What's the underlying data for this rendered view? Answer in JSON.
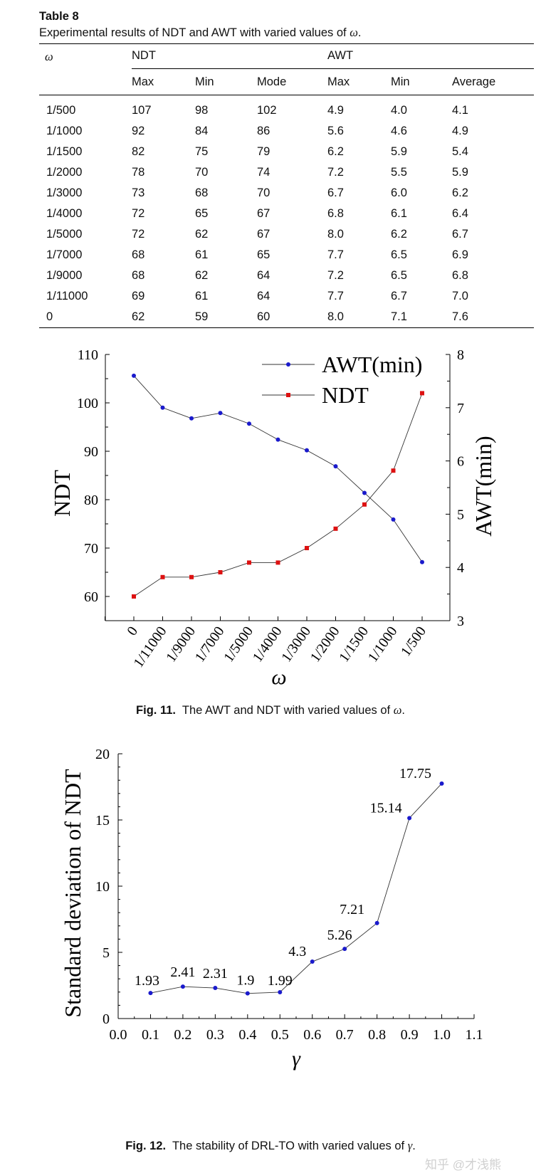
{
  "table": {
    "title": "Table 8",
    "caption_prefix": "Experimental results of NDT and AWT with varied values of ",
    "caption_symbol": "ω",
    "caption_suffix": ".",
    "header": {
      "omega": "ω",
      "ndt_group": "NDT",
      "awt_group": "AWT",
      "subcols": [
        "Max",
        "Min",
        "Mode",
        "Max",
        "Min",
        "Average"
      ]
    },
    "rows": [
      [
        "1/500",
        "107",
        "98",
        "102",
        "4.9",
        "4.0",
        "4.1"
      ],
      [
        "1/1000",
        "92",
        "84",
        "86",
        "5.6",
        "4.6",
        "4.9"
      ],
      [
        "1/1500",
        "82",
        "75",
        "79",
        "6.2",
        "5.9",
        "5.4"
      ],
      [
        "1/2000",
        "78",
        "70",
        "74",
        "7.2",
        "5.5",
        "5.9"
      ],
      [
        "1/3000",
        "73",
        "68",
        "70",
        "6.7",
        "6.0",
        "6.2"
      ],
      [
        "1/4000",
        "72",
        "65",
        "67",
        "6.8",
        "6.1",
        "6.4"
      ],
      [
        "1/5000",
        "72",
        "62",
        "67",
        "8.0",
        "6.2",
        "6.7"
      ],
      [
        "1/7000",
        "68",
        "61",
        "65",
        "7.7",
        "6.5",
        "6.9"
      ],
      [
        "1/9000",
        "68",
        "62",
        "64",
        "7.2",
        "6.5",
        "6.8"
      ],
      [
        "1/11000",
        "69",
        "61",
        "64",
        "7.7",
        "6.7",
        "7.0"
      ],
      [
        "0",
        "62",
        "59",
        "60",
        "8.0",
        "7.1",
        "7.6"
      ]
    ]
  },
  "fig11": {
    "caption_label": "Fig. 11.",
    "caption_text": "The AWT and NDT with varied values of ",
    "caption_symbol": "ω",
    "caption_suffix": "."
  },
  "fig12": {
    "caption_label": "Fig. 12.",
    "caption_text": "The stability of DRL-TO with varied values of ",
    "caption_symbol": "γ",
    "caption_suffix": "."
  },
  "watermark": "知乎 @才浅熊",
  "colors": {
    "awt_series": "#1a1acc",
    "ndt_series": "#dd1111",
    "line": "#333333"
  },
  "chart_data": [
    {
      "type": "line",
      "title": "",
      "xlabel": "ω",
      "ylabel": "NDT",
      "y2label": "AWT(min)",
      "categories": [
        "0",
        "1/11000",
        "1/9000",
        "1/7000",
        "1/5000",
        "1/4000",
        "1/3000",
        "1/2000",
        "1/1500",
        "1/1000",
        "1/500"
      ],
      "ylim": [
        55,
        110
      ],
      "y2lim": [
        3,
        8
      ],
      "yticks": [
        60,
        70,
        80,
        90,
        100,
        110
      ],
      "y2ticks": [
        3,
        4,
        5,
        6,
        7,
        8
      ],
      "legend_position": "top-right",
      "series": [
        {
          "name": "AWT(min)",
          "axis": "right",
          "marker": "circle",
          "values": [
            7.6,
            7.0,
            6.8,
            6.9,
            6.7,
            6.4,
            6.2,
            5.9,
            5.4,
            4.9,
            4.1
          ]
        },
        {
          "name": "NDT",
          "axis": "left",
          "marker": "square",
          "values": [
            60,
            64,
            64,
            65,
            67,
            67,
            70,
            74,
            79,
            86,
            102
          ]
        }
      ]
    },
    {
      "type": "line",
      "title": "",
      "xlabel": "γ",
      "ylabel": "Standard deviation of NDT",
      "x": [
        0.1,
        0.2,
        0.3,
        0.4,
        0.5,
        0.6,
        0.7,
        0.8,
        0.9,
        1.0
      ],
      "xlim": [
        0.0,
        1.1
      ],
      "xticks": [
        "0.0",
        "0.1",
        "0.2",
        "0.3",
        "0.4",
        "0.5",
        "0.6",
        "0.7",
        "0.8",
        "0.9",
        "1.0",
        "1.1"
      ],
      "ylim": [
        0,
        20
      ],
      "yticks": [
        0,
        5,
        10,
        15,
        20
      ],
      "series": [
        {
          "name": "Standard deviation of NDT",
          "values": [
            1.93,
            2.41,
            2.31,
            1.9,
            1.99,
            4.3,
            5.26,
            7.21,
            15.14,
            17.75
          ],
          "data_labels": [
            "1.93",
            "2.41",
            "2.31",
            "1.9",
            "1.99",
            "4.3",
            "5.26",
            "7.21",
            "15.14",
            "17.75"
          ]
        }
      ]
    }
  ]
}
